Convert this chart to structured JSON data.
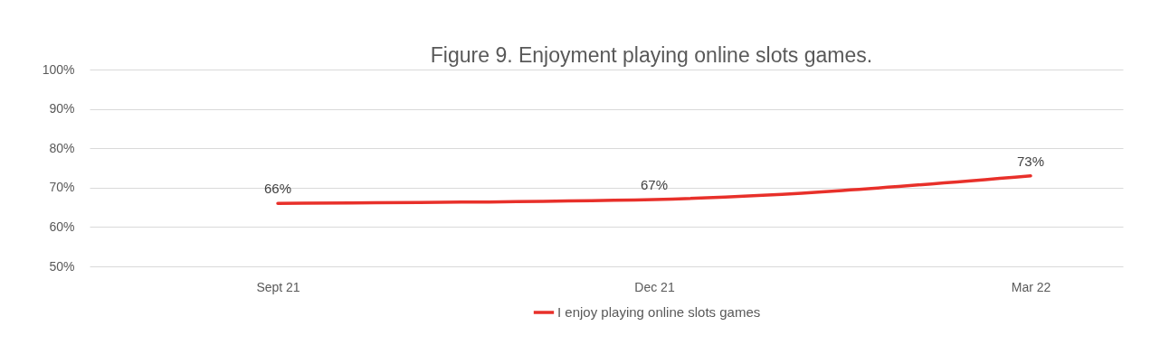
{
  "chart_data": {
    "type": "line",
    "title": "Figure 9. Enjoyment playing online slots games.",
    "categories": [
      "Sept 21",
      "Dec 21",
      "Mar 22"
    ],
    "series": [
      {
        "name": "I enjoy playing online slots games",
        "color": "#e8302a",
        "values": [
          66,
          67,
          73
        ],
        "value_labels": [
          "66%",
          "67%",
          "73%"
        ]
      }
    ],
    "ylim": [
      50,
      100
    ],
    "yticks": [
      {
        "value": 50,
        "label": "50%"
      },
      {
        "value": 60,
        "label": "60%"
      },
      {
        "value": 70,
        "label": "70%"
      },
      {
        "value": 80,
        "label": "80%"
      },
      {
        "value": 90,
        "label": "90%"
      },
      {
        "value": 100,
        "label": "100%"
      }
    ],
    "grid": "y",
    "legend": "bottom",
    "line_style": "solid"
  }
}
